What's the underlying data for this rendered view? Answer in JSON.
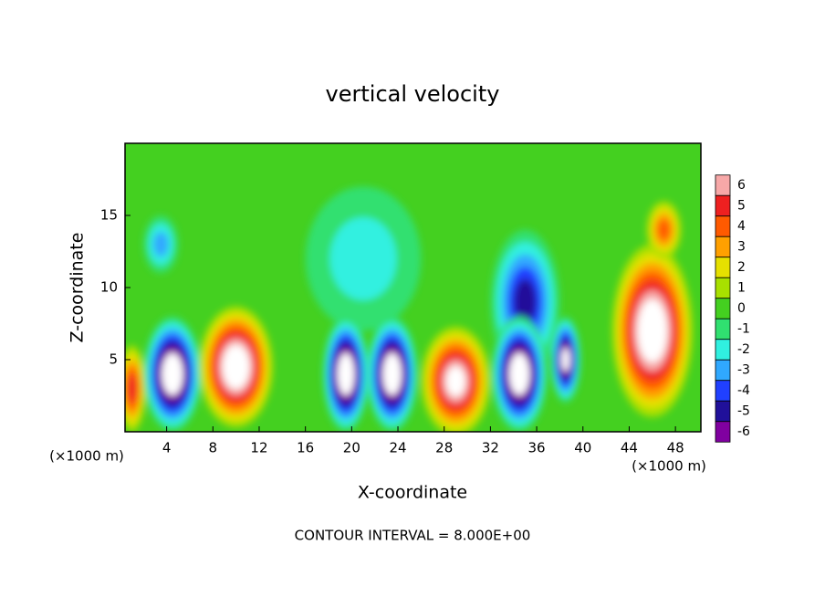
{
  "chart_data": {
    "type": "contour",
    "title": "vertical velocity",
    "xlabel": "X-coordinate",
    "ylabel": "Z-coordinate",
    "x_unit": "(×1000 m)",
    "note": "CONTOUR INTERVAL = 8.000E+00",
    "xlim": [
      0.4,
      50.2
    ],
    "ylim": [
      0,
      20
    ],
    "xticks": [
      4,
      8,
      12,
      16,
      20,
      24,
      28,
      32,
      36,
      40,
      44,
      48
    ],
    "yticks": [
      5,
      10,
      15
    ],
    "levels": [
      6,
      5,
      4,
      3,
      2,
      1,
      0,
      -1,
      -2,
      -3,
      -4,
      -5,
      -6
    ],
    "colors": [
      "#f7a8a8",
      "#ee2020",
      "#ff5a00",
      "#ffa000",
      "#e6e000",
      "#a8e000",
      "#44d020",
      "#30e070",
      "#30f0e0",
      "#30a8ff",
      "#2040ff",
      "#20109a",
      "#8000a0"
    ],
    "background": 0,
    "cells": [
      {
        "x": 21,
        "z": 12,
        "rx": 5,
        "rz": 5,
        "value": -2
      },
      {
        "x": 3.5,
        "z": 13,
        "rx": 1.5,
        "rz": 2,
        "value": -3
      },
      {
        "x": 35,
        "z": 9,
        "rx": 3,
        "rz": 5,
        "value": -5
      },
      {
        "x": 1,
        "z": 3,
        "rx": 1.2,
        "rz": 3,
        "value": 5
      },
      {
        "x": 4.5,
        "z": 4,
        "rx": 2.5,
        "rz": 4,
        "value": -8
      },
      {
        "x": 10,
        "z": 4.5,
        "rx": 3.2,
        "rz": 4.2,
        "value": 8
      },
      {
        "x": 19.5,
        "z": 4,
        "rx": 2,
        "rz": 4,
        "value": -8
      },
      {
        "x": 23.5,
        "z": 4,
        "rx": 2.2,
        "rz": 4,
        "value": -8
      },
      {
        "x": 29,
        "z": 3.5,
        "rx": 3,
        "rz": 3.8,
        "value": 7
      },
      {
        "x": 34.5,
        "z": 4,
        "rx": 2.4,
        "rz": 4,
        "value": -8
      },
      {
        "x": 38.5,
        "z": 5,
        "rx": 1.3,
        "rz": 3,
        "value": -7
      },
      {
        "x": 46,
        "z": 7,
        "rx": 3.5,
        "rz": 6,
        "value": 8
      },
      {
        "x": 47,
        "z": 14,
        "rx": 1.5,
        "rz": 2,
        "value": 4
      }
    ]
  }
}
